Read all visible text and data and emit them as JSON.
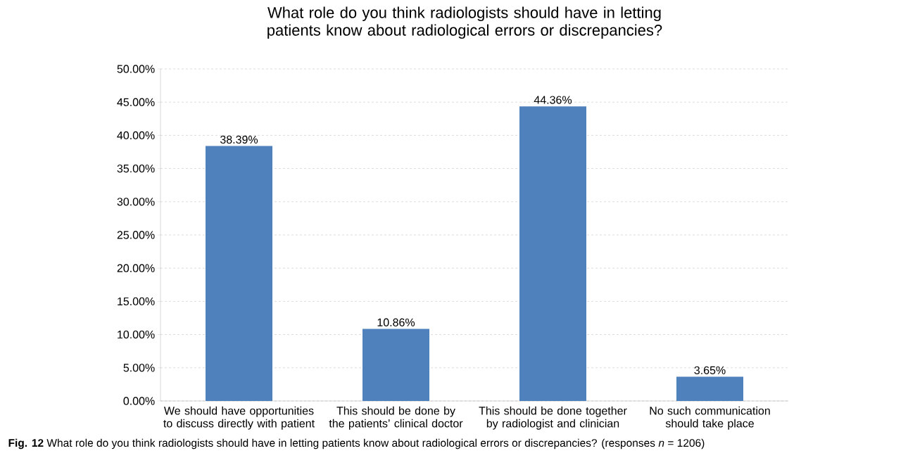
{
  "chart_data": {
    "type": "bar",
    "title": "What role do you think radiologists should have in letting patients know about radiological errors or discrepancies?",
    "categories": [
      "We should have opportunities to discuss directly with patient",
      "This should be done by the patients’ clinical doctor",
      "This should be done together by radiologist and clinician",
      "No such communication should take place"
    ],
    "values": [
      38.39,
      10.86,
      44.36,
      3.65
    ],
    "value_labels": [
      "38.39%",
      "10.86%",
      "44.36%",
      "3.65%"
    ],
    "color": "#4f81bd",
    "ylim": [
      0,
      50
    ],
    "yticks": [
      {
        "value": 0,
        "label": "0.00%"
      },
      {
        "value": 5,
        "label": "5.00%"
      },
      {
        "value": 10,
        "label": "10.00%"
      },
      {
        "value": 15,
        "label": "15.00%"
      },
      {
        "value": 20,
        "label": "20.00%"
      },
      {
        "value": 25,
        "label": "25.00%"
      },
      {
        "value": 30,
        "label": "30.00%"
      },
      {
        "value": 35,
        "label": "35.00%"
      },
      {
        "value": 40,
        "label": "40.00%"
      },
      {
        "value": 45,
        "label": "45.00%"
      },
      {
        "value": 50,
        "label": "50.00%"
      }
    ],
    "grid": "y",
    "annotations": [
      "**Fig. 12** What role do you think radiologists should have in letting patients know about radiological errors or discrepancies? (responses *n* = 1206)"
    ]
  }
}
